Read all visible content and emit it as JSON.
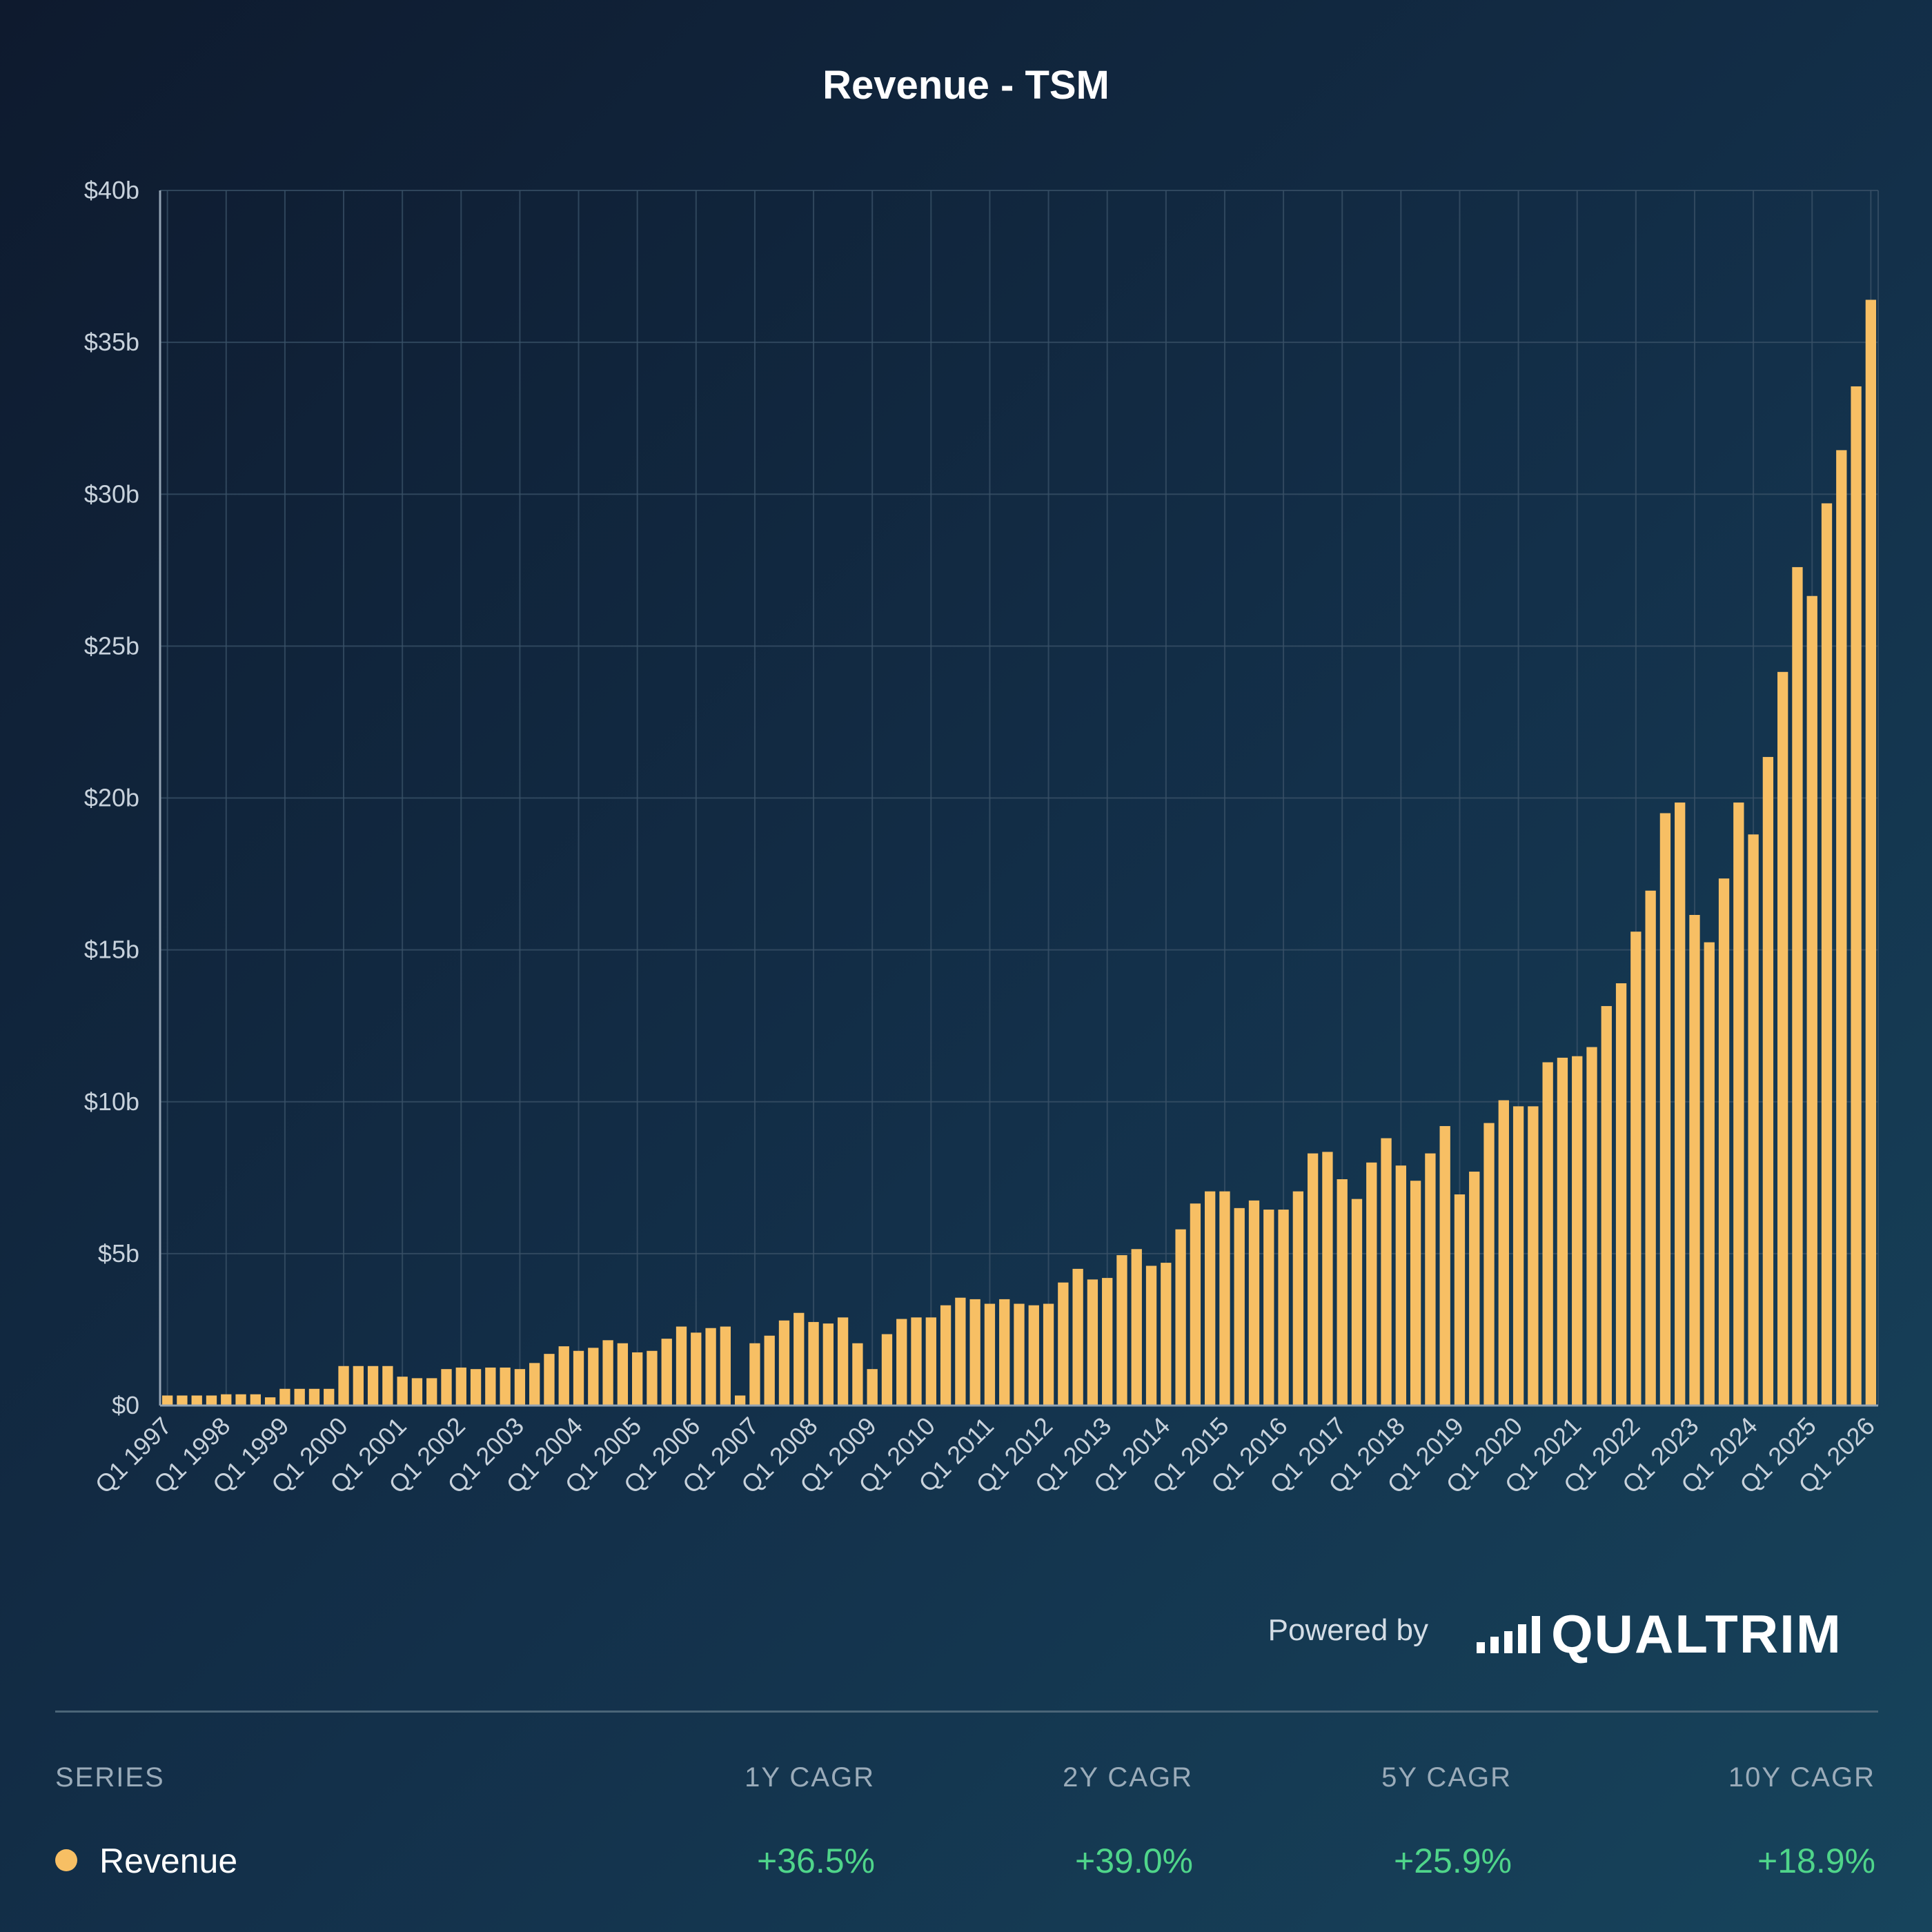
{
  "chart_data": {
    "type": "bar",
    "title": "Revenue - TSM",
    "y_axis": {
      "min": 0,
      "max": 40,
      "unit": "billion USD",
      "ticks": [
        "$0",
        "$5b",
        "$10b",
        "$15b",
        "$20b",
        "$25b",
        "$30b",
        "$35b",
        "$40b"
      ]
    },
    "x_tick_labels": [
      "Q1 1997",
      "Q1 1998",
      "Q1 1999",
      "Q1 2000",
      "Q1 2001",
      "Q1 2002",
      "Q1 2003",
      "Q1 2004",
      "Q1 2005",
      "Q1 2006",
      "Q1 2007",
      "Q1 2008",
      "Q1 2009",
      "Q1 2010",
      "Q1 2011",
      "Q1 2012",
      "Q1 2013",
      "Q1 2014",
      "Q1 2015",
      "Q1 2016",
      "Q1 2017",
      "Q1 2018",
      "Q1 2019",
      "Q1 2020",
      "Q1 2021",
      "Q1 2022",
      "Q1 2023",
      "Q1 2024",
      "Q1 2025",
      "Q1 2026"
    ],
    "grid": true,
    "bar_color": "#f7bf64",
    "series": [
      {
        "name": "Revenue",
        "first_period": "Q1 1997",
        "frequency": "quarterly",
        "values": [
          0.33,
          0.33,
          0.33,
          0.33,
          0.37,
          0.37,
          0.37,
          0.27,
          0.55,
          0.55,
          0.55,
          0.55,
          1.3,
          1.3,
          1.3,
          1.3,
          0.95,
          0.9,
          0.9,
          1.2,
          1.25,
          1.2,
          1.25,
          1.25,
          1.2,
          1.4,
          1.7,
          1.95,
          1.8,
          1.9,
          2.15,
          2.05,
          1.75,
          1.8,
          2.2,
          2.6,
          2.4,
          2.55,
          2.6,
          0.33,
          2.05,
          2.3,
          2.8,
          3.05,
          2.75,
          2.7,
          2.9,
          2.05,
          1.2,
          2.35,
          2.85,
          2.9,
          2.9,
          3.3,
          3.55,
          3.5,
          3.35,
          3.5,
          3.35,
          3.3,
          3.35,
          4.05,
          4.5,
          4.15,
          4.2,
          4.95,
          5.15,
          4.6,
          4.7,
          5.8,
          6.65,
          7.05,
          7.05,
          6.5,
          6.75,
          6.45,
          6.45,
          7.05,
          8.3,
          8.35,
          7.45,
          6.8,
          8.0,
          8.8,
          7.9,
          7.4,
          8.3,
          9.2,
          6.95,
          7.7,
          9.3,
          10.05,
          9.85,
          9.85,
          11.3,
          11.45,
          11.5,
          11.8,
          13.15,
          13.9,
          15.6,
          16.95,
          19.5,
          19.85,
          16.15,
          15.25,
          17.35,
          19.85,
          18.8,
          21.35,
          24.15,
          27.6,
          26.65,
          29.7,
          31.45,
          33.55,
          36.4
        ]
      }
    ]
  },
  "branding": {
    "powered_by": "Powered by",
    "logo_text": "QUALTRIM"
  },
  "stats": {
    "headers": {
      "series": "SERIES",
      "cagr_1y": "1Y CAGR",
      "cagr_2y": "2Y CAGR",
      "cagr_5y": "5Y CAGR",
      "cagr_10y": "10Y CAGR"
    },
    "row": {
      "name": "Revenue",
      "color": "#f7bf64",
      "cagr_1y": "+36.5%",
      "cagr_2y": "+39.0%",
      "cagr_5y": "+25.9%",
      "cagr_10y": "+18.9%"
    }
  }
}
